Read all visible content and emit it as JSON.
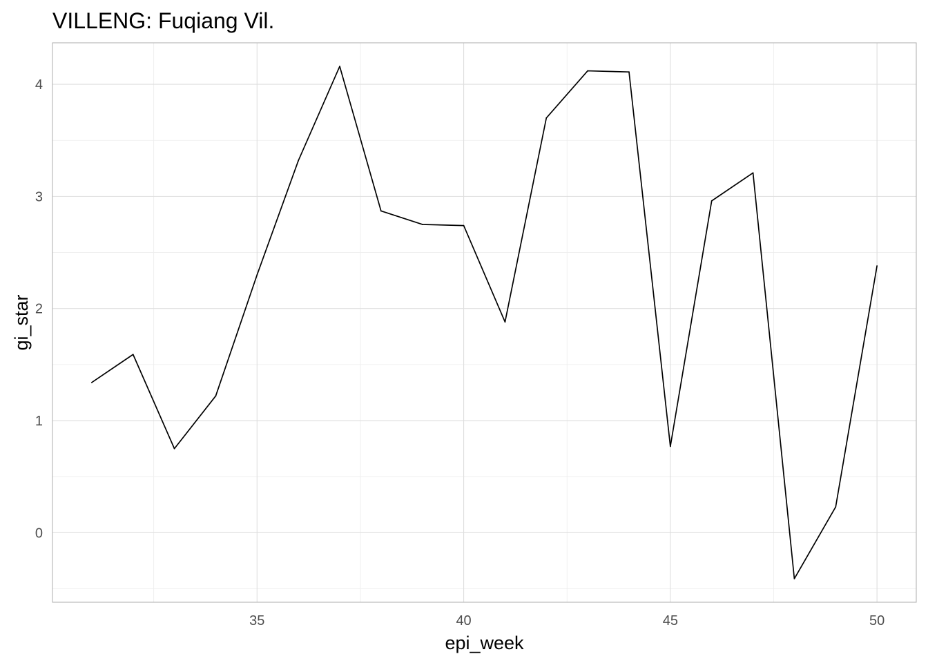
{
  "chart_data": {
    "type": "line",
    "title": "VILLENG: Fuqiang Vil.",
    "xlabel": "epi_week",
    "ylabel": "gi_star",
    "x": [
      31,
      32,
      33,
      34,
      35,
      36,
      37,
      38,
      39,
      40,
      41,
      42,
      43,
      44,
      45,
      46,
      47,
      48,
      49,
      50
    ],
    "series": [
      {
        "values": [
          1.34,
          1.59,
          0.75,
          1.22,
          2.3,
          3.32,
          4.16,
          2.87,
          2.75,
          2.74,
          1.88,
          3.7,
          4.12,
          4.11,
          0.77,
          2.96,
          3.21,
          -0.41,
          0.23,
          2.38
        ],
        "color": "#000000"
      }
    ],
    "xlim": [
      30.05,
      50.95
    ],
    "ylim": [
      -0.62,
      4.37
    ],
    "x_ticks": [
      35,
      40,
      45,
      50
    ],
    "x_tick_labels": [
      "35",
      "40",
      "45",
      "50"
    ],
    "x_minor_ticks": [
      32.5,
      37.5,
      42.5,
      47.5
    ],
    "y_ticks": [
      0,
      1,
      2,
      3,
      4
    ],
    "y_tick_labels": [
      "0",
      "1",
      "2",
      "3",
      "4"
    ],
    "y_minor_ticks": [
      -0.5,
      0.5,
      1.5,
      2.5,
      3.5
    ],
    "grid": true,
    "legend": "none"
  }
}
